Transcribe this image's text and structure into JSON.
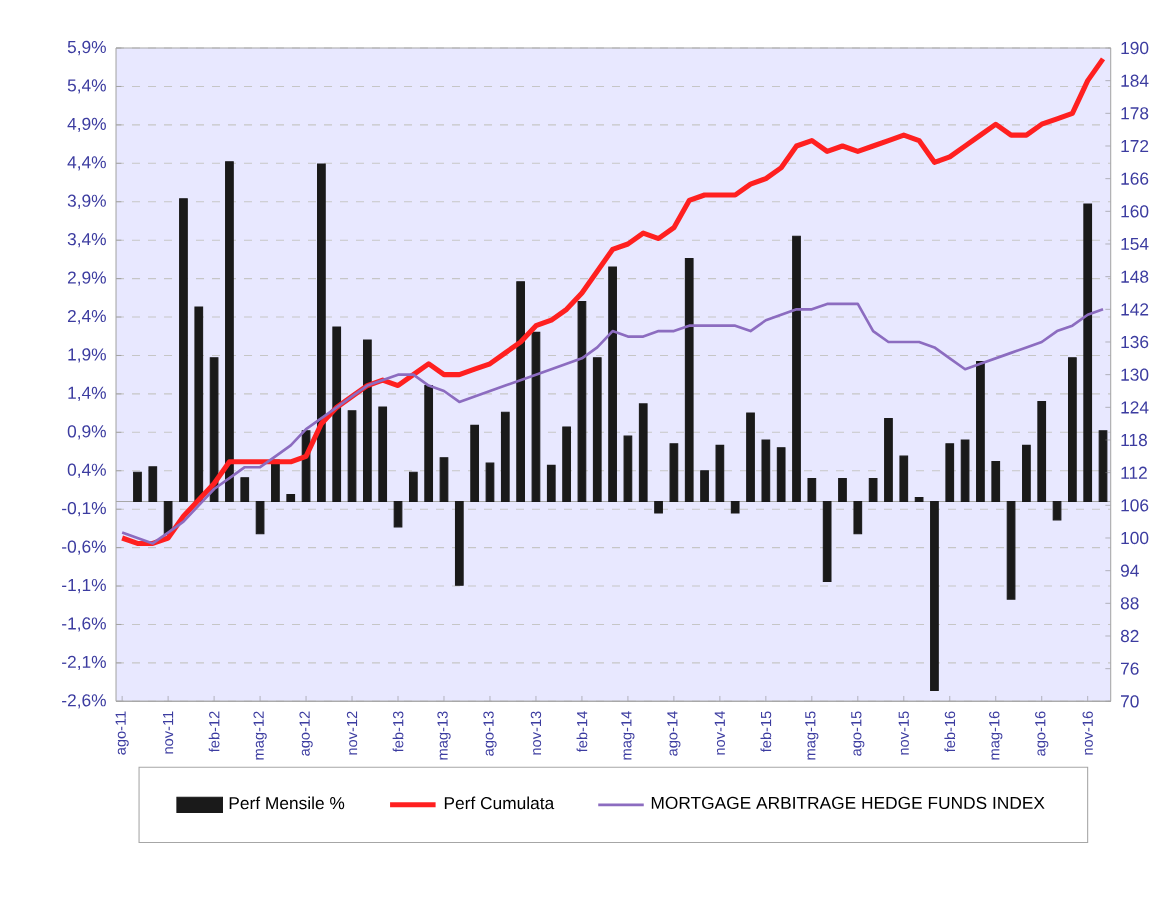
{
  "chart_data": {
    "type": "bar",
    "categories": [
      "ago-11",
      null,
      null,
      "nov-11",
      null,
      null,
      "feb-12",
      null,
      null,
      "mag-12",
      null,
      null,
      "ago-12",
      null,
      null,
      "nov-12",
      null,
      null,
      "feb-13",
      null,
      null,
      "mag-13",
      null,
      null,
      "ago-13",
      null,
      null,
      "nov-13",
      null,
      null,
      "feb-14",
      null,
      null,
      "mag-14",
      null,
      null,
      "ago-14",
      null,
      null,
      "nov-14",
      null,
      null,
      "feb-15",
      null,
      null,
      "mag-15",
      null,
      null,
      "ago-15",
      null,
      null,
      "nov-15",
      null,
      null,
      "feb-16",
      null,
      null,
      "mag-16",
      null,
      null,
      "ago-16",
      null,
      null,
      "nov-16",
      null
    ],
    "series": [
      {
        "name": "Perf Mensile %",
        "color": "#1a1a1a",
        "values": [
          null,
          0.38,
          0.45,
          -0.43,
          3.94,
          2.53,
          1.87,
          4.42,
          0.31,
          -0.42,
          0.54,
          0.09,
          0.92,
          4.39,
          2.27,
          1.18,
          2.1,
          1.23,
          -0.33,
          0.38,
          1.51,
          0.57,
          -1.09,
          0.99,
          0.5,
          1.16,
          2.86,
          2.2,
          0.47,
          0.97,
          2.6,
          1.87,
          3.05,
          0.85,
          1.27,
          -0.15,
          0.75,
          3.16,
          0.4,
          0.73,
          -0.15,
          1.15,
          0.8,
          0.7,
          3.45,
          0.3,
          -1.04,
          0.3,
          -0.42,
          0.3,
          1.08,
          0.59,
          0.05,
          -2.46,
          0.75,
          0.8,
          1.82,
          0.52,
          -1.27,
          0.73,
          1.3,
          -0.24,
          1.87,
          3.87,
          0.92
        ]
      },
      {
        "name": "Perf Cumulata",
        "type": "line",
        "axis": "y2",
        "color": "#ff2020",
        "values": [
          100,
          99,
          99,
          100,
          104,
          107,
          110,
          114,
          114,
          114,
          114,
          114,
          115,
          121,
          124,
          126,
          128,
          129,
          128,
          130,
          132,
          130,
          130,
          131,
          132,
          134,
          136,
          139,
          140,
          142,
          145,
          149,
          153,
          154,
          156,
          155,
          157,
          162,
          163,
          163,
          163,
          165,
          166,
          168,
          172,
          173,
          171,
          172,
          171,
          172,
          173,
          174,
          173,
          169,
          170,
          172,
          174,
          176,
          174,
          174,
          176,
          177,
          178,
          184,
          188
        ]
      },
      {
        "name": "MORTGAGE ARBITRAGE HEDGE FUNDS INDEX",
        "type": "line",
        "axis": "y2",
        "color": "#8c6cc0",
        "values": [
          101,
          100,
          99,
          101,
          103,
          106,
          109,
          111,
          113,
          113,
          115,
          117,
          120,
          122,
          124,
          126,
          128,
          129,
          130,
          130,
          128,
          127,
          125,
          126,
          127,
          128,
          129,
          130,
          131,
          132,
          133,
          135,
          138,
          137,
          137,
          138,
          138,
          139,
          139,
          139,
          139,
          138,
          140,
          141,
          142,
          142,
          143,
          143,
          143,
          138,
          136,
          136,
          136,
          135,
          133,
          131,
          132,
          133,
          134,
          135,
          136,
          138,
          139,
          141,
          142
        ]
      }
    ],
    "ylim": [
      -2.6,
      5.9
    ],
    "yticks": [
      {
        "value": -2.6,
        "label": "-2,6%"
      },
      {
        "value": -2.1,
        "label": "-2,1%"
      },
      {
        "value": -1.6,
        "label": "-1,6%"
      },
      {
        "value": -1.1,
        "label": "-1,1%"
      },
      {
        "value": -0.6,
        "label": "-0,6%"
      },
      {
        "value": -0.1,
        "label": "-0,1%"
      },
      {
        "value": 0.4,
        "label": "0,4%"
      },
      {
        "value": 0.9,
        "label": "0,9%"
      },
      {
        "value": 1.4,
        "label": "1,4%"
      },
      {
        "value": 1.9,
        "label": "1,9%"
      },
      {
        "value": 2.4,
        "label": "2,4%"
      },
      {
        "value": 2.9,
        "label": "2,9%"
      },
      {
        "value": 3.4,
        "label": "3,4%"
      },
      {
        "value": 3.9,
        "label": "3,9%"
      },
      {
        "value": 4.4,
        "label": "4,4%"
      },
      {
        "value": 4.9,
        "label": "4,9%"
      },
      {
        "value": 5.4,
        "label": "5,4%"
      },
      {
        "value": 5.9,
        "label": "5,9%"
      }
    ],
    "y2lim": [
      70,
      190
    ],
    "y2ticks": [
      70,
      76,
      82,
      88,
      94,
      100,
      106,
      112,
      118,
      124,
      130,
      136,
      142,
      148,
      154,
      160,
      166,
      172,
      178,
      184,
      190
    ],
    "grid": "y",
    "legend": "bottom"
  }
}
